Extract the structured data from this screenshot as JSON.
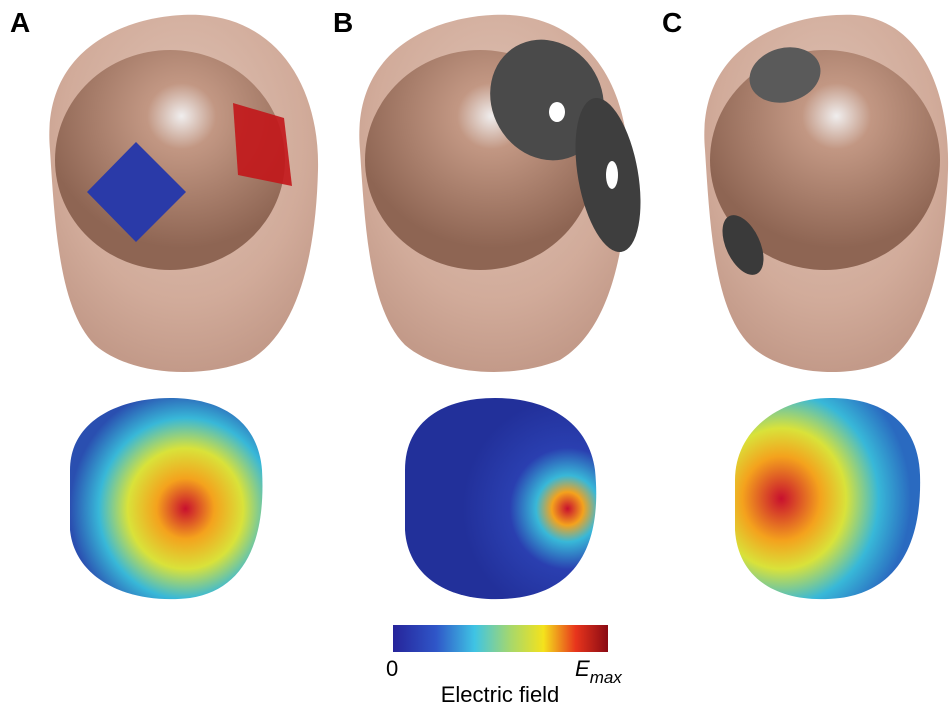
{
  "panels": [
    {
      "label": "A"
    },
    {
      "label": "B"
    },
    {
      "label": "C"
    }
  ],
  "colorbar": {
    "min_label": "0",
    "max_label": "E",
    "max_subscript": "max",
    "title": "Electric field"
  }
}
